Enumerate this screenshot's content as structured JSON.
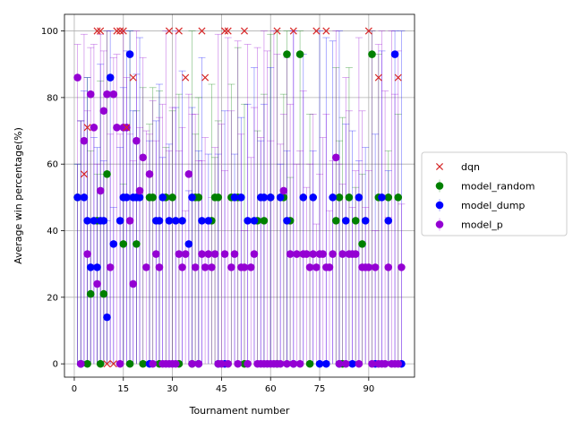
{
  "chart_data": {
    "type": "scatter",
    "xlabel": "Tournament number",
    "ylabel": "Average win percentage(%)",
    "xlim": [
      -3,
      104
    ],
    "ylim": [
      -4,
      105
    ],
    "xticks": [
      0,
      15,
      30,
      45,
      60,
      75,
      90
    ],
    "yticks": [
      0,
      20,
      40,
      60,
      80,
      100
    ],
    "grid": true,
    "legend_position": "center-right",
    "series": [
      {
        "name": "dqn",
        "marker": "x",
        "color": "#d62728",
        "x": [
          3,
          4,
          7,
          8,
          10,
          12,
          13,
          14,
          15,
          16,
          18,
          29,
          32,
          34,
          39,
          40,
          46,
          47,
          52,
          62,
          67,
          74,
          77,
          90,
          93,
          99
        ],
        "y": [
          57,
          71,
          100,
          100,
          0,
          0,
          100,
          100,
          100,
          71,
          86,
          100,
          100,
          86,
          100,
          86,
          100,
          100,
          100,
          100,
          100,
          100,
          100,
          100,
          86,
          86
        ]
      },
      {
        "name": "model_random",
        "marker": "o",
        "color": "#008000",
        "x": [
          1,
          2,
          4,
          5,
          7,
          8,
          9,
          10,
          15,
          17,
          19,
          21,
          23,
          24,
          26,
          28,
          30,
          32,
          36,
          37,
          38,
          42,
          43,
          44,
          48,
          50,
          52,
          56,
          58,
          60,
          62,
          64,
          65,
          66,
          69,
          72,
          80,
          81,
          82,
          84,
          86,
          88,
          91,
          93,
          96,
          99
        ],
        "y": [
          50,
          0,
          0,
          21,
          43,
          0,
          21,
          57,
          36,
          0,
          36,
          0,
          50,
          50,
          0,
          50,
          50,
          0,
          0,
          50,
          50,
          43,
          50,
          50,
          50,
          50,
          0,
          43,
          43,
          50,
          0,
          50,
          93,
          43,
          93,
          0,
          43,
          50,
          0,
          50,
          43,
          36,
          93,
          50,
          50,
          50
        ]
      },
      {
        "name": "model_dump",
        "marker": "o",
        "color": "#0000ff",
        "x": [
          1,
          2,
          3,
          4,
          5,
          6,
          7,
          8,
          9,
          10,
          11,
          12,
          14,
          15,
          16,
          17,
          18,
          19,
          20,
          23,
          25,
          26,
          27,
          29,
          31,
          33,
          35,
          36,
          38,
          39,
          41,
          44,
          46,
          49,
          51,
          53,
          55,
          57,
          58,
          60,
          63,
          65,
          67,
          70,
          73,
          75,
          77,
          79,
          81,
          83,
          85,
          87,
          89,
          92,
          94,
          96,
          98,
          100
        ],
        "y": [
          50,
          0,
          50,
          43,
          29,
          43,
          29,
          43,
          43,
          14,
          86,
          36,
          43,
          50,
          50,
          93,
          50,
          50,
          50,
          0,
          43,
          43,
          50,
          43,
          43,
          43,
          36,
          50,
          0,
          43,
          43,
          0,
          0,
          50,
          50,
          43,
          43,
          50,
          50,
          50,
          50,
          43,
          0,
          50,
          50,
          0,
          0,
          50,
          0,
          43,
          0,
          50,
          43,
          0,
          50,
          43,
          93,
          0
        ]
      },
      {
        "name": "model_p",
        "marker": "o",
        "color": "#9400d3",
        "x": [
          1,
          2,
          3,
          4,
          5,
          6,
          7,
          8,
          9,
          10,
          11,
          12,
          13,
          14,
          15,
          16,
          17,
          18,
          19,
          20,
          21,
          22,
          23,
          24,
          25,
          26,
          27,
          28,
          29,
          30,
          31,
          32,
          33,
          34,
          35,
          36,
          37,
          38,
          39,
          40,
          41,
          42,
          43,
          44,
          45,
          46,
          47,
          48,
          49,
          50,
          51,
          52,
          53,
          54,
          55,
          56,
          57,
          58,
          59,
          60,
          61,
          62,
          63,
          64,
          65,
          66,
          67,
          68,
          69,
          70,
          71,
          72,
          73,
          74,
          75,
          76,
          77,
          78,
          79,
          80,
          81,
          82,
          83,
          84,
          85,
          86,
          87,
          88,
          89,
          90,
          91,
          92,
          93,
          94,
          95,
          96,
          97,
          98,
          99,
          100
        ],
        "y": [
          86,
          0,
          67,
          33,
          81,
          71,
          24,
          52,
          76,
          81,
          29,
          81,
          71,
          0,
          71,
          71,
          43,
          24,
          67,
          52,
          62,
          29,
          57,
          0,
          33,
          29,
          0,
          0,
          0,
          0,
          0,
          33,
          29,
          33,
          57,
          0,
          29,
          0,
          33,
          29,
          33,
          29,
          33,
          0,
          0,
          33,
          0,
          29,
          33,
          0,
          29,
          29,
          0,
          29,
          33,
          0,
          0,
          0,
          0,
          0,
          0,
          0,
          0,
          52,
          0,
          33,
          0,
          33,
          0,
          33,
          33,
          29,
          33,
          29,
          33,
          33,
          29,
          29,
          33,
          62,
          0,
          33,
          0,
          33,
          33,
          33,
          0,
          29,
          29,
          29,
          0,
          29,
          0,
          0,
          0,
          29,
          0,
          0,
          0,
          29
        ]
      }
    ]
  }
}
